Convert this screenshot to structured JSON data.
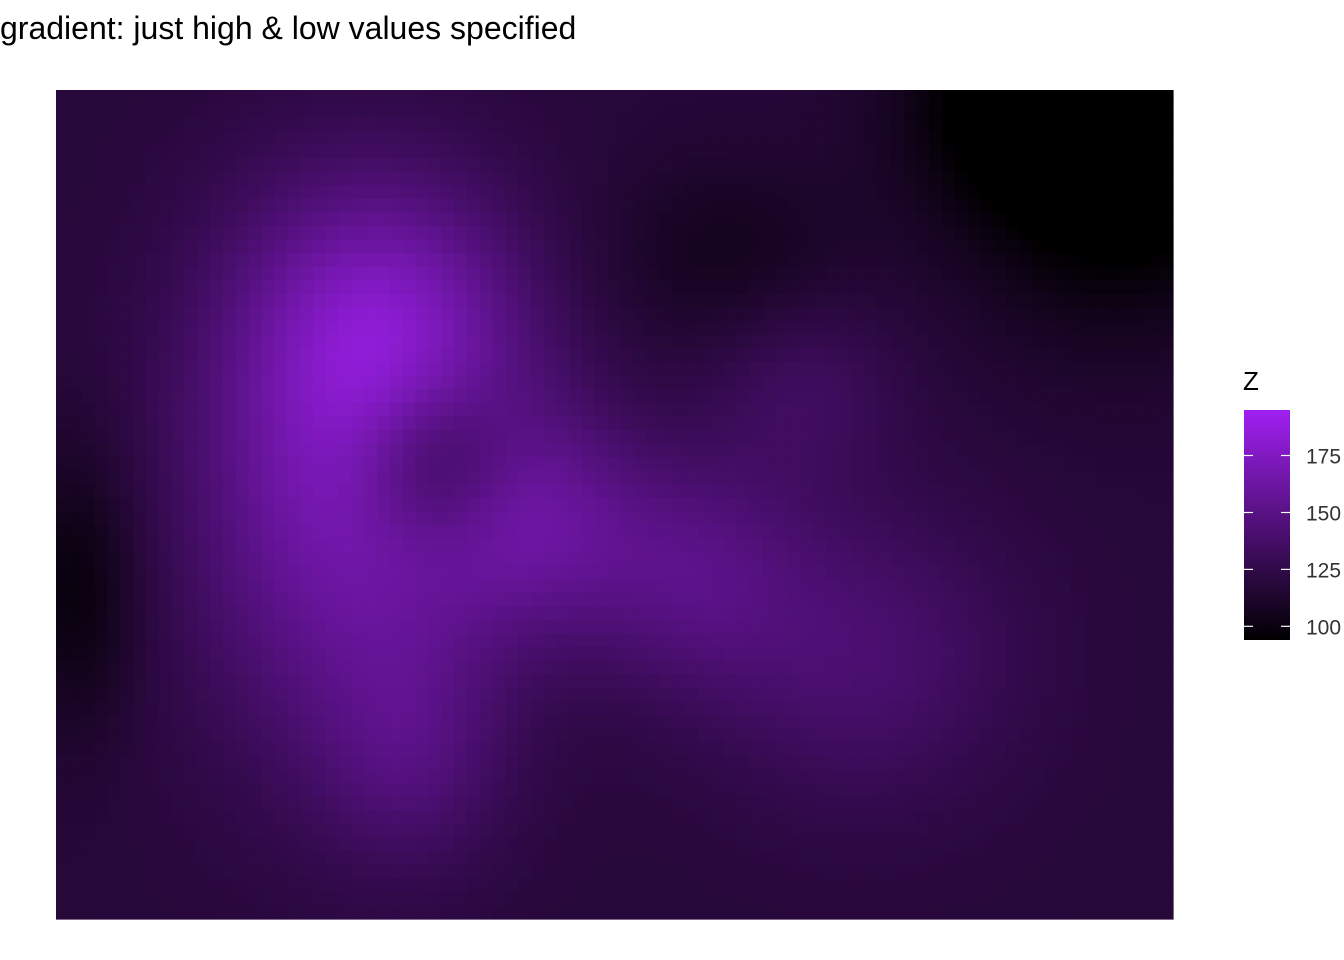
{
  "chart_data": {
    "type": "heatmap",
    "title": "gradient: just high & low values specified",
    "xlabel": "",
    "ylabel": "",
    "axes_visible": false,
    "grid": false,
    "grid_size": {
      "cols": 87,
      "rows": 61
    },
    "value_range": [
      94,
      195
    ],
    "color_scale": {
      "low": "#000000",
      "high": "#a020f0"
    },
    "legend": {
      "title": "Z",
      "position": "right",
      "breaks": [
        100,
        125,
        150,
        175
      ],
      "labels": [
        "100",
        "125",
        "150",
        "175"
      ]
    },
    "field": {
      "description_note": "",
      "base": 118,
      "bumps": [
        {
          "cx": 0.26,
          "cy": 0.48,
          "amp": 48,
          "sx": 0.1,
          "sy": 0.22
        },
        {
          "cx": 0.3,
          "cy": 0.28,
          "amp": 35,
          "sx": 0.09,
          "sy": 0.12
        },
        {
          "cx": 0.43,
          "cy": 0.52,
          "amp": 32,
          "sx": 0.07,
          "sy": 0.1
        },
        {
          "cx": 0.57,
          "cy": 0.58,
          "amp": 25,
          "sx": 0.07,
          "sy": 0.1
        },
        {
          "cx": 0.72,
          "cy": 0.68,
          "amp": 22,
          "sx": 0.1,
          "sy": 0.13
        },
        {
          "cx": 0.67,
          "cy": 0.36,
          "amp": 15,
          "sx": 0.06,
          "sy": 0.08
        },
        {
          "cx": 0.32,
          "cy": 0.8,
          "amp": 18,
          "sx": 0.06,
          "sy": 0.1
        },
        {
          "cx": 0.34,
          "cy": 0.45,
          "amp": -32,
          "sx": 0.05,
          "sy": 0.07
        },
        {
          "cx": 0.95,
          "cy": 0.05,
          "amp": -40,
          "sx": 0.1,
          "sy": 0.15
        },
        {
          "cx": 0.88,
          "cy": 0.02,
          "amp": -20,
          "sx": 0.08,
          "sy": 0.08
        },
        {
          "cx": 0.02,
          "cy": 0.6,
          "amp": -20,
          "sx": 0.04,
          "sy": 0.12
        },
        {
          "cx": 0.6,
          "cy": 0.2,
          "amp": -12,
          "sx": 0.08,
          "sy": 0.08
        }
      ]
    }
  }
}
